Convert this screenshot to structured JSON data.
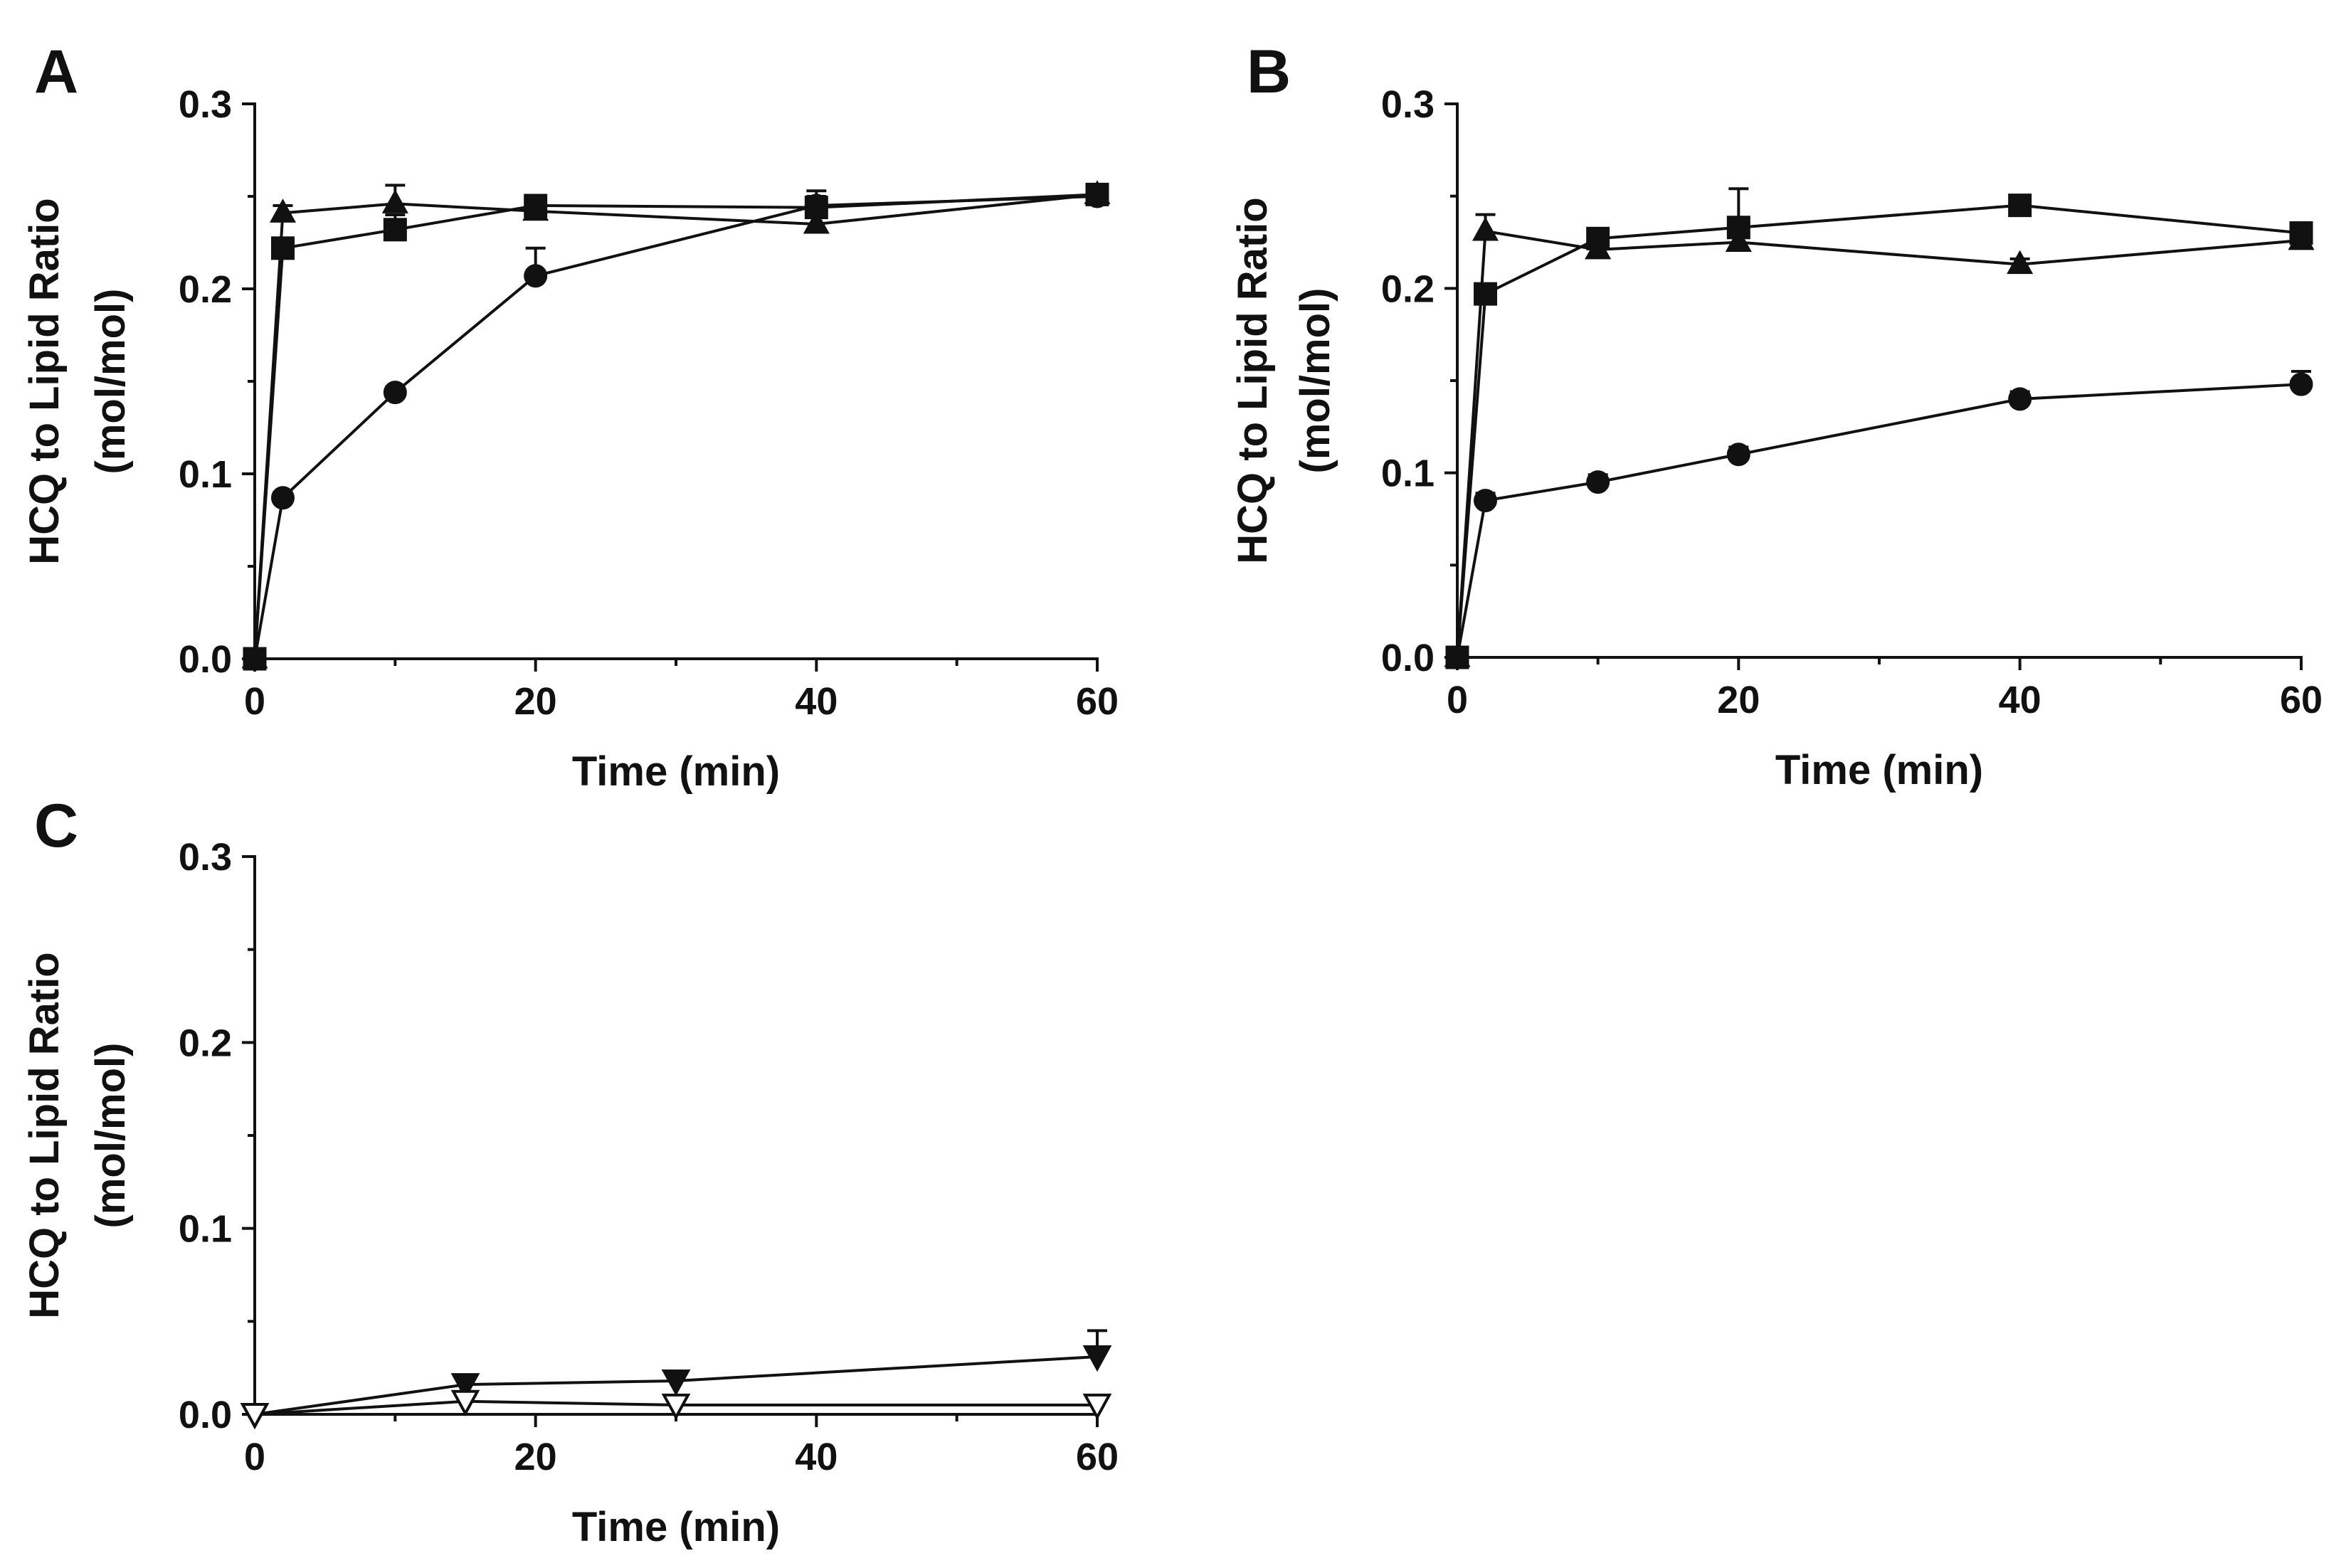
{
  "chart_data": [
    {
      "panel": "A",
      "type": "line",
      "xlabel": "Time (min)",
      "ylabel": [
        "HCQ to Lipid Ratio",
        "(mol/mol)"
      ],
      "xlim": [
        0,
        60
      ],
      "ylim": [
        0,
        0.3
      ],
      "xticks": [
        0,
        20,
        40,
        60
      ],
      "xtick_labels": [
        "0",
        "20",
        "40",
        "60"
      ],
      "yticks": [
        0,
        0.1,
        0.2,
        0.3
      ],
      "ytick_labels": [
        "0.0",
        "0.1",
        "0.2",
        "0.3"
      ],
      "series": [
        {
          "name": "triangle",
          "marker": "triangle",
          "filled": true,
          "x": [
            0,
            2,
            10,
            20,
            40,
            60
          ],
          "values": [
            0,
            0.241,
            0.246,
            0.242,
            0.235,
            0.251
          ],
          "err": [
            0,
            0.004,
            0.01,
            0.006,
            0.005,
            0.004
          ]
        },
        {
          "name": "square",
          "marker": "square",
          "filled": true,
          "x": [
            0,
            2,
            10,
            20,
            40,
            60
          ],
          "values": [
            0,
            0.222,
            0.232,
            0.245,
            0.244,
            0.251
          ],
          "err": [
            0,
            0.004,
            0.008,
            0.005,
            0.006,
            0.004
          ]
        },
        {
          "name": "circle",
          "marker": "circle",
          "filled": true,
          "x": [
            0,
            2,
            10,
            20,
            40,
            60
          ],
          "values": [
            0,
            0.087,
            0.144,
            0.207,
            0.245,
            0.25
          ],
          "err": [
            0,
            0.003,
            0.003,
            0.015,
            0.008,
            0.004
          ]
        }
      ]
    },
    {
      "panel": "B",
      "type": "line",
      "xlabel": "Time (min)",
      "ylabel": [
        "HCQ to Lipid Ratio",
        "(mol/mol)"
      ],
      "xlim": [
        0,
        60
      ],
      "ylim": [
        0,
        0.3
      ],
      "xticks": [
        0,
        20,
        40,
        60
      ],
      "xtick_labels": [
        "0",
        "20",
        "40",
        "60"
      ],
      "yticks": [
        0,
        0.1,
        0.2,
        0.3
      ],
      "ytick_labels": [
        "0.0",
        "0.1",
        "0.2",
        "0.3"
      ],
      "series": [
        {
          "name": "triangle",
          "marker": "triangle",
          "filled": true,
          "x": [
            0,
            2,
            10,
            20,
            40,
            60
          ],
          "values": [
            0,
            0.231,
            0.221,
            0.225,
            0.213,
            0.226
          ],
          "err": [
            0,
            0.009,
            0.005,
            0.013,
            0.003,
            0.006
          ]
        },
        {
          "name": "square",
          "marker": "square",
          "filled": true,
          "x": [
            0,
            2,
            10,
            20,
            40,
            60
          ],
          "values": [
            0,
            0.197,
            0.227,
            0.233,
            0.245,
            0.23
          ],
          "err": [
            0,
            0.004,
            0.005,
            0.021,
            0.004,
            0.005
          ]
        },
        {
          "name": "circle",
          "marker": "circle",
          "filled": true,
          "x": [
            0,
            2,
            10,
            20,
            40,
            60
          ],
          "values": [
            0,
            0.085,
            0.095,
            0.11,
            0.14,
            0.148
          ],
          "err": [
            0,
            0.004,
            0.004,
            0.004,
            0.004,
            0.007
          ]
        }
      ]
    },
    {
      "panel": "C",
      "type": "line",
      "xlabel": "Time (min)",
      "ylabel": [
        "HCQ to Lipid Ratio",
        "(mol/mol)"
      ],
      "xlim": [
        0,
        60
      ],
      "ylim": [
        0,
        0.3
      ],
      "xticks": [
        0,
        20,
        40,
        60
      ],
      "xtick_labels": [
        "0",
        "20",
        "40",
        "60"
      ],
      "yticks": [
        0,
        0.1,
        0.2,
        0.3
      ],
      "ytick_labels": [
        "0.0",
        "0.1",
        "0.2",
        "0.3"
      ],
      "series": [
        {
          "name": "inverted-triangle-filled",
          "marker": "triangle-down",
          "filled": true,
          "x": [
            0,
            15,
            30,
            60
          ],
          "values": [
            0,
            0.016,
            0.018,
            0.031
          ],
          "err": [
            0,
            0.004,
            0.004,
            0.014
          ]
        },
        {
          "name": "inverted-triangle-open",
          "marker": "triangle-down",
          "filled": false,
          "x": [
            0,
            15,
            30,
            60
          ],
          "values": [
            0,
            0.007,
            0.005,
            0.005
          ],
          "err": [
            0,
            0.003,
            0.003,
            0.003
          ]
        }
      ]
    }
  ]
}
